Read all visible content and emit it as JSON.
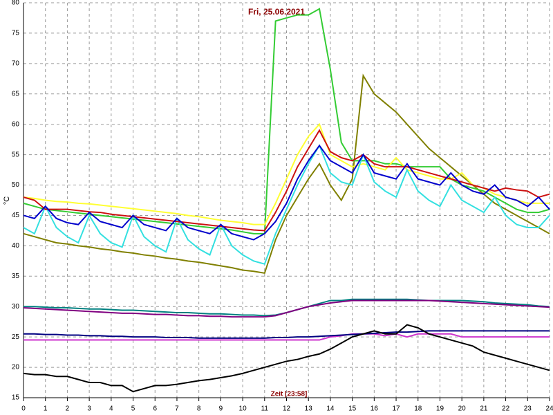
{
  "chart_data": {
    "type": "line",
    "title": "Fri, 25.06.2021",
    "x_label": "Zeit [23:58]",
    "y_label": "°C",
    "xlim": [
      0,
      24
    ],
    "xticks": [
      0,
      1,
      2,
      3,
      4,
      5,
      6,
      7,
      8,
      9,
      10,
      11,
      12,
      13,
      14,
      15,
      16,
      17,
      18,
      19,
      20,
      21,
      22,
      23,
      24
    ],
    "ylim": [
      15,
      80
    ],
    "yticks": [
      15,
      20,
      25,
      30,
      35,
      40,
      45,
      50,
      55,
      60,
      65,
      70,
      75,
      80
    ],
    "grid": true,
    "x": [
      0,
      0.5,
      1,
      1.5,
      2,
      2.5,
      3,
      3.5,
      4,
      4.5,
      5,
      5.5,
      6,
      6.5,
      7,
      7.5,
      8,
      8.5,
      9,
      9.5,
      10,
      10.5,
      11,
      11.5,
      12,
      12.5,
      13,
      13.5,
      14,
      14.5,
      15,
      15.5,
      16,
      16.5,
      17,
      17.5,
      18,
      18.5,
      19,
      19.5,
      20,
      20.5,
      21,
      21.5,
      22,
      22.5,
      23,
      23.5,
      24
    ],
    "series": [
      {
        "color": "#808000",
        "values": [
          42,
          41.5,
          41,
          40.5,
          40.3,
          40,
          39.8,
          39.5,
          39.3,
          39,
          38.8,
          38.5,
          38.3,
          38,
          37.8,
          37.5,
          37.3,
          37,
          36.7,
          36.4,
          36,
          35.8,
          35.5,
          41,
          45,
          48,
          51,
          53.5,
          50,
          47.5,
          51,
          68,
          65,
          63.5,
          62,
          60,
          58,
          56,
          54.5,
          53,
          51.5,
          50,
          48.5,
          47,
          46,
          45,
          44,
          43,
          42
        ]
      },
      {
        "color": "#33cc33",
        "values": [
          47,
          46.5,
          46,
          45.8,
          45.6,
          45.4,
          45.2,
          45,
          44.8,
          44.6,
          44.4,
          44.2,
          44,
          43.8,
          43.6,
          43.4,
          43.2,
          43,
          42.8,
          42.6,
          42.3,
          42,
          42,
          77,
          77.5,
          78,
          78,
          79,
          69,
          57,
          54,
          54,
          54,
          53.5,
          53.5,
          53,
          53,
          53,
          53,
          51,
          50,
          49.5,
          49,
          48,
          47,
          46,
          45.5,
          45.5,
          46
        ]
      },
      {
        "color": "#ffff33",
        "values": [
          48,
          47.8,
          47.5,
          47.3,
          47.2,
          47,
          46.9,
          46.7,
          46.5,
          46.3,
          46.1,
          45.9,
          45.7,
          45.5,
          45.3,
          45,
          44.8,
          44.5,
          44.2,
          44,
          43.8,
          43.5,
          43.5,
          47,
          51,
          55,
          58,
          60,
          55,
          54,
          53,
          53.5,
          53,
          52.5,
          54.5,
          52.5,
          52,
          51.5,
          51,
          51,
          52,
          50,
          49.5,
          48.5,
          48,
          47.5,
          47,
          47,
          47
        ]
      },
      {
        "color": "#33e0e0",
        "values": [
          43,
          42,
          46.5,
          43,
          41.5,
          40.5,
          45,
          42,
          40.5,
          39.8,
          45,
          41.5,
          40,
          39,
          44.5,
          41,
          39.5,
          38.5,
          43.5,
          40,
          38.5,
          37.5,
          37,
          42,
          46,
          50,
          53.5,
          56.5,
          52,
          50.5,
          50,
          55,
          50.5,
          49,
          48,
          52.5,
          49,
          47.5,
          46.5,
          50,
          47.5,
          46.5,
          45.5,
          48,
          45,
          43.5,
          43,
          43,
          45
        ]
      },
      {
        "color": "#cc1111",
        "values": [
          48,
          47.5,
          46,
          46,
          46,
          45.8,
          45.6,
          45.5,
          45.2,
          45,
          44.8,
          44.6,
          44.4,
          44.2,
          44,
          43.8,
          43.6,
          43.4,
          43.2,
          43,
          42.8,
          42.6,
          42.5,
          45.5,
          49,
          53,
          56,
          59,
          55.5,
          54.5,
          54,
          55,
          53.5,
          53,
          53,
          53,
          52.5,
          52,
          51.5,
          51,
          50.5,
          50,
          49.5,
          49,
          49.5,
          49.2,
          49,
          48,
          48.5
        ]
      },
      {
        "color": "#0000cc",
        "values": [
          45,
          44.5,
          46.5,
          44.5,
          43.8,
          43.5,
          45.5,
          44,
          43.5,
          43,
          45,
          43.5,
          43,
          42.5,
          44.5,
          43,
          42.5,
          42,
          43.5,
          42,
          41.5,
          41,
          42,
          44,
          47,
          51,
          54,
          56.5,
          54,
          53,
          52,
          55,
          52,
          51.5,
          51,
          53.5,
          51,
          50.5,
          50,
          52,
          50,
          49,
          48.5,
          50,
          48,
          47.5,
          46.5,
          48,
          46
        ]
      },
      {
        "color": "#008080",
        "values": [
          30,
          30,
          29.9,
          29.8,
          29.8,
          29.7,
          29.6,
          29.6,
          29.5,
          29.4,
          29.4,
          29.3,
          29.2,
          29.1,
          29,
          29,
          28.9,
          28.8,
          28.8,
          28.7,
          28.6,
          28.6,
          28.5,
          28.6,
          29,
          29.5,
          30,
          30.5,
          31,
          31,
          31.2,
          31.2,
          31.2,
          31.2,
          31.2,
          31.2,
          31.1,
          31,
          31,
          31,
          31,
          30.9,
          30.8,
          30.6,
          30.5,
          30.4,
          30.3,
          30.1,
          30
        ]
      },
      {
        "color": "#800080",
        "values": [
          29.8,
          29.7,
          29.6,
          29.5,
          29.4,
          29.3,
          29.2,
          29.1,
          29,
          28.9,
          28.9,
          28.8,
          28.7,
          28.7,
          28.6,
          28.5,
          28.5,
          28.4,
          28.4,
          28.3,
          28.3,
          28.3,
          28.3,
          28.5,
          29,
          29.5,
          30,
          30.3,
          30.6,
          30.8,
          31,
          31,
          31,
          31,
          31,
          31,
          31,
          31,
          30.9,
          30.8,
          30.7,
          30.6,
          30.5,
          30.4,
          30.3,
          30.2,
          30.1,
          30,
          29.9
        ]
      },
      {
        "color": "#cc33cc",
        "values": [
          24.5,
          24.5,
          24.5,
          24.5,
          24.5,
          24.5,
          24.5,
          24.5,
          24.5,
          24.5,
          24.5,
          24.5,
          24.5,
          24.5,
          24.5,
          24.5,
          24.5,
          24.5,
          24.5,
          24.5,
          24.5,
          24.5,
          24.5,
          24.5,
          24.5,
          24.5,
          24.5,
          24.5,
          25,
          25.2,
          25.5,
          25.5,
          25.5,
          25.2,
          25.5,
          25,
          25.5,
          25.5,
          25.5,
          25.5,
          25,
          25,
          25,
          25,
          25,
          25,
          25,
          25,
          25
        ]
      },
      {
        "color": "#000080",
        "values": [
          25.5,
          25.5,
          25.4,
          25.4,
          25.3,
          25.3,
          25.2,
          25.2,
          25.1,
          25.1,
          25,
          25,
          25,
          24.9,
          24.9,
          24.9,
          24.8,
          24.8,
          24.8,
          24.8,
          24.8,
          24.8,
          24.8,
          24.9,
          24.9,
          25,
          25,
          25.1,
          25.2,
          25.3,
          25.4,
          25.5,
          25.6,
          25.7,
          25.8,
          25.8,
          25.9,
          26,
          26,
          26,
          26,
          26,
          26,
          26,
          26,
          26,
          26,
          26,
          26
        ]
      },
      {
        "color": "#000000",
        "values": [
          19,
          18.8,
          18.8,
          18.5,
          18.5,
          18,
          17.5,
          17.5,
          17,
          17,
          16,
          16.5,
          17,
          17,
          17.2,
          17.5,
          17.8,
          18,
          18.3,
          18.6,
          19,
          19.5,
          20,
          20.5,
          21,
          21.3,
          21.8,
          22.2,
          23,
          24,
          25,
          25.5,
          26,
          25.5,
          25.5,
          27,
          26.5,
          25.5,
          25,
          24.5,
          24,
          23.5,
          22.5,
          22,
          21.5,
          21,
          20.5,
          20,
          19.5
        ]
      }
    ]
  }
}
